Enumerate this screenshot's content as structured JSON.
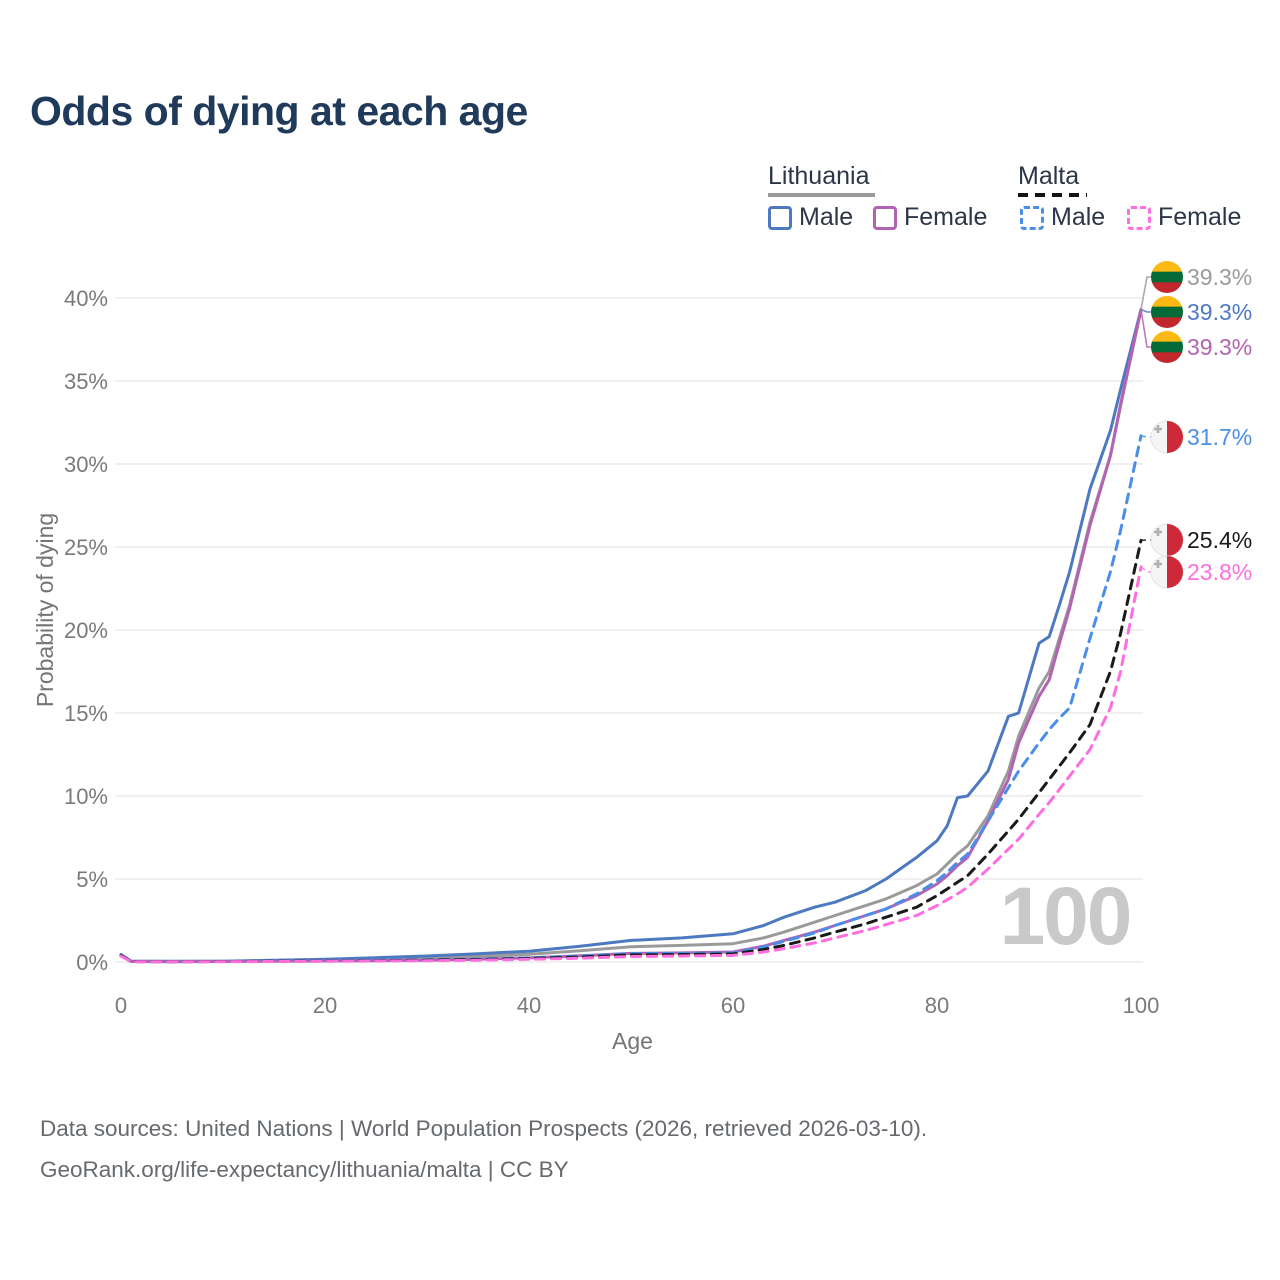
{
  "title": "Odds of dying at each age",
  "legend": {
    "groups": [
      {
        "label": "Lithuania",
        "line_style": "solid",
        "line_color": "#9a9a9a",
        "items": [
          {
            "label": "Male",
            "color": "#4d79c1"
          },
          {
            "label": "Female",
            "color": "#b263b2"
          }
        ]
      },
      {
        "label": "Malta",
        "line_style": "dashed",
        "line_color": "#141414",
        "items": [
          {
            "label": "Male",
            "color": "#4a8ee8"
          },
          {
            "label": "Female",
            "color": "#ff6ee0"
          }
        ]
      }
    ]
  },
  "chart_data": {
    "type": "line",
    "title": "Odds of dying at each age",
    "xlabel": "Age",
    "ylabel": "Probability of dying",
    "x_ticks": [
      0,
      20,
      40,
      60,
      80,
      100
    ],
    "y_ticks": [
      "0%",
      "5%",
      "10%",
      "15%",
      "20%",
      "25%",
      "30%",
      "35%",
      "40%"
    ],
    "xlim": [
      0,
      100
    ],
    "ylim_percent": [
      0,
      40
    ],
    "grid": "horizontal",
    "x": [
      0,
      1,
      5,
      10,
      15,
      20,
      25,
      30,
      35,
      40,
      45,
      50,
      55,
      60,
      63,
      65,
      68,
      70,
      73,
      75,
      78,
      80,
      81,
      82,
      83,
      85,
      87,
      88,
      90,
      91,
      92,
      93,
      95,
      97,
      98,
      100
    ],
    "series": [
      {
        "name": "Lithuania Male",
        "country": "lithuania",
        "color": "#4d79c1",
        "dash": false,
        "end_label": "39.3%",
        "values": [
          0.45,
          0.05,
          0.04,
          0.05,
          0.1,
          0.17,
          0.26,
          0.36,
          0.5,
          0.65,
          0.95,
          1.3,
          1.45,
          1.7,
          2.2,
          2.7,
          3.3,
          3.6,
          4.3,
          5.0,
          6.3,
          7.3,
          8.2,
          9.9,
          10.0,
          11.5,
          14.8,
          15.0,
          19.2,
          19.6,
          21.5,
          23.5,
          28.5,
          32.0,
          34.5,
          39.3
        ]
      },
      {
        "name": "Lithuania",
        "country": "lithuania",
        "color": "#9a9a9a",
        "dash": false,
        "end_label": "39.3%",
        "values": [
          0.42,
          0.04,
          0.03,
          0.04,
          0.07,
          0.12,
          0.17,
          0.24,
          0.33,
          0.47,
          0.68,
          0.92,
          1.0,
          1.1,
          1.45,
          1.8,
          2.4,
          2.8,
          3.4,
          3.8,
          4.6,
          5.3,
          5.9,
          6.5,
          7.0,
          8.8,
          11.5,
          13.6,
          16.5,
          17.5,
          19.5,
          21.5,
          26.5,
          30.5,
          33.5,
          39.3
        ]
      },
      {
        "name": "Lithuania Female",
        "country": "lithuania",
        "color": "#b263b2",
        "dash": false,
        "end_label": "39.3%",
        "values": [
          0.4,
          0.03,
          0.02,
          0.03,
          0.04,
          0.06,
          0.08,
          0.11,
          0.17,
          0.25,
          0.38,
          0.52,
          0.55,
          0.6,
          0.95,
          1.3,
          1.8,
          2.2,
          2.8,
          3.2,
          4.0,
          4.7,
          5.2,
          5.8,
          6.3,
          8.5,
          11.0,
          13.2,
          16.0,
          17.0,
          19.2,
          21.3,
          26.3,
          30.5,
          33.6,
          39.3
        ]
      },
      {
        "name": "Malta Male",
        "country": "malta",
        "color": "#4a8ee8",
        "dash": true,
        "end_label": "31.7%",
        "values": [
          0.4,
          0.03,
          0.02,
          0.03,
          0.05,
          0.07,
          0.1,
          0.13,
          0.18,
          0.25,
          0.36,
          0.5,
          0.52,
          0.55,
          0.9,
          1.25,
          1.75,
          2.2,
          2.8,
          3.2,
          4.1,
          4.9,
          5.4,
          6.0,
          6.5,
          8.5,
          10.5,
          11.5,
          13.2,
          14.0,
          14.7,
          15.3,
          19.5,
          23.5,
          26.0,
          31.7
        ]
      },
      {
        "name": "Malta",
        "country": "malta",
        "color": "#1a1a1a",
        "dash": true,
        "end_label": "25.4%",
        "values": [
          0.38,
          0.03,
          0.02,
          0.03,
          0.04,
          0.06,
          0.08,
          0.11,
          0.15,
          0.21,
          0.3,
          0.43,
          0.45,
          0.48,
          0.75,
          1.0,
          1.45,
          1.8,
          2.3,
          2.7,
          3.3,
          4.0,
          4.4,
          4.8,
          5.2,
          6.5,
          7.9,
          8.6,
          10.2,
          11.0,
          11.8,
          12.6,
          14.3,
          17.5,
          19.8,
          25.4
        ]
      },
      {
        "name": "Malta Female",
        "country": "malta",
        "color": "#ff6ee0",
        "dash": true,
        "end_label": "23.8%",
        "values": [
          0.35,
          0.02,
          0.015,
          0.02,
          0.03,
          0.05,
          0.06,
          0.08,
          0.11,
          0.16,
          0.23,
          0.33,
          0.36,
          0.4,
          0.6,
          0.8,
          1.15,
          1.45,
          1.9,
          2.25,
          2.8,
          3.4,
          3.75,
          4.1,
          4.5,
          5.6,
          6.8,
          7.4,
          8.9,
          9.6,
          10.4,
          11.2,
          12.8,
          15.3,
          17.5,
          23.8
        ]
      }
    ],
    "legend_position": "top-right",
    "watermark": "100",
    "flag_colors": {
      "lithuania": [
        "#FDB913",
        "#046A38",
        "#C1272D"
      ],
      "malta": [
        "#f5f5f5",
        "#CE2939",
        "#b0b0b0"
      ]
    }
  },
  "footer": {
    "line1": "Data sources: United Nations | World Population Prospects (2026, retrieved 2026-03-10).",
    "line2": "GeoRank.org/life-expectancy/lithuania/malta | CC BY"
  }
}
